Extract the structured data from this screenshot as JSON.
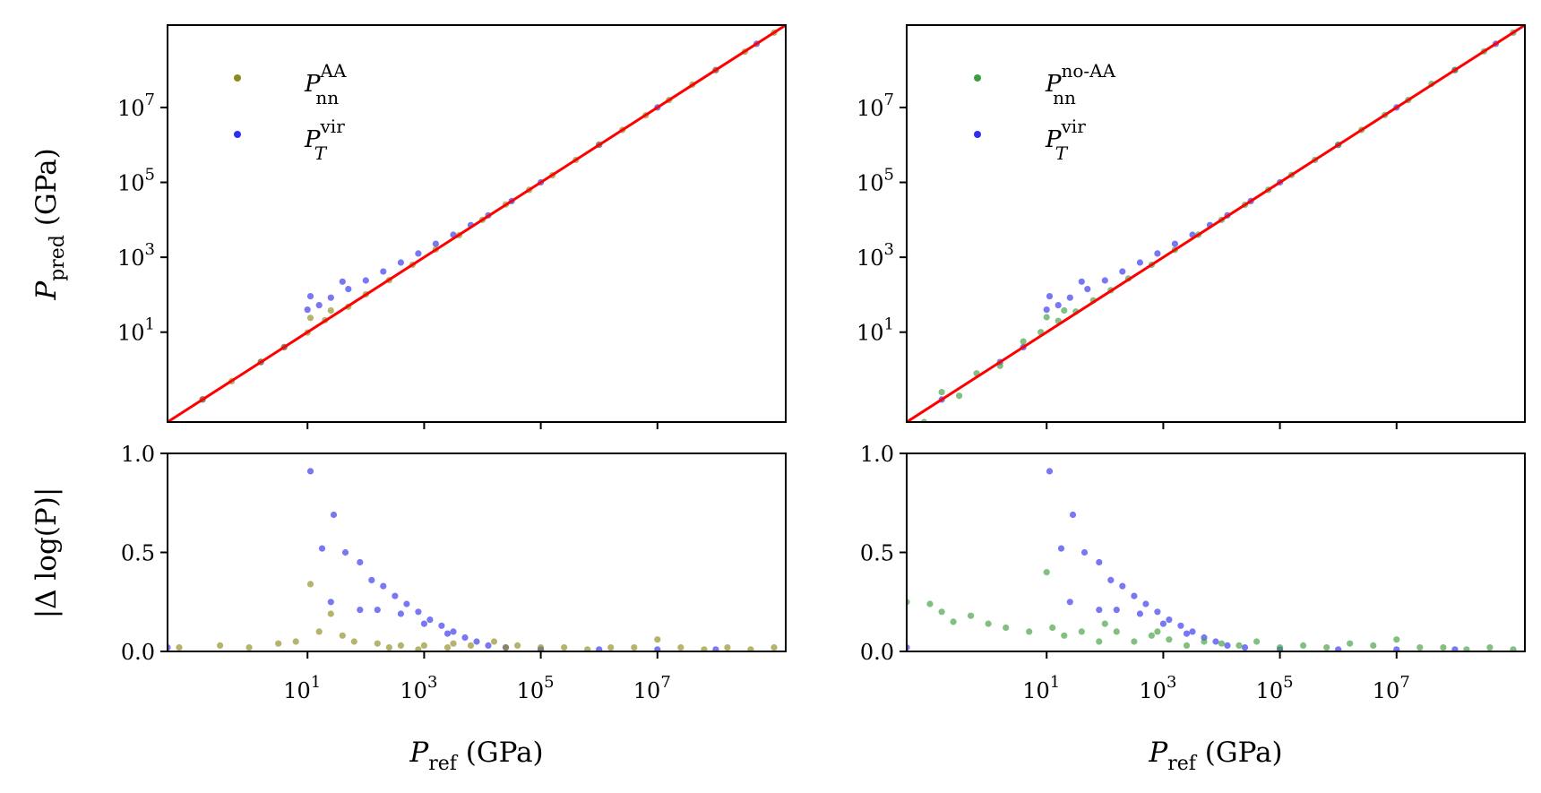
{
  "colors": {
    "nn_aa": "#8f8a1e",
    "nn_noaa": "#3d9e3d",
    "virial": "#2f2ff0",
    "identity": "#ff0000"
  },
  "labels": {
    "ylabel_top_main": "P",
    "ylabel_top_sub": "pred",
    "ylabel_top_unit": " (GPa)",
    "ylabel_bottom": "|Δ log(P)|",
    "xlabel_main": "P",
    "xlabel_sub": "ref",
    "xlabel_unit": " (GPa)",
    "legend_left_1_main": "P",
    "legend_left_1_sup": "AA",
    "legend_left_1_sub": "nn",
    "legend_right_1_main": "P",
    "legend_right_1_sup": "no-AA",
    "legend_right_1_sub": "nn",
    "legend_2_main": "P",
    "legend_2_sup": "vir",
    "legend_2_sub": "T"
  },
  "chart_data": [
    {
      "type": "scatter",
      "panel": "top-left",
      "title": "",
      "xlabel": "P_ref (GPa)",
      "ylabel": "P_pred (GPa)",
      "xscale": "log",
      "yscale": "log",
      "xlim_log10": [
        -1.4,
        9.2
      ],
      "ylim_log10": [
        -1.4,
        9.2
      ],
      "yticks": [
        {
          "label": "10",
          "exp": "1",
          "v": 1
        },
        {
          "label": "10",
          "exp": "3",
          "v": 3
        },
        {
          "label": "10",
          "exp": "5",
          "v": 5
        },
        {
          "label": "10",
          "exp": "7",
          "v": 7
        }
      ],
      "xticks_unlabeled": [
        1,
        3,
        5,
        7
      ],
      "identity_line": true,
      "legend": "top-left",
      "series": [
        {
          "name": "P_nn^AA",
          "color_key": "nn_aa",
          "log10_x": [
            -0.8,
            -0.3,
            0.2,
            0.6,
            1.0,
            1.3,
            1.7,
            2.0,
            2.4,
            2.8,
            3.2,
            3.6,
            4.0,
            4.4,
            4.8,
            5.2,
            5.6,
            6.0,
            6.4,
            6.8,
            7.2,
            7.6,
            8.0,
            8.5,
            9.0,
            1.05,
            1.4
          ],
          "log10_y": [
            -0.79,
            -0.31,
            0.21,
            0.6,
            0.99,
            1.32,
            1.68,
            2.01,
            2.39,
            2.8,
            3.21,
            3.59,
            4.0,
            4.41,
            4.8,
            5.19,
            5.6,
            6.01,
            6.4,
            6.79,
            7.2,
            7.61,
            8.0,
            8.49,
            9.0,
            1.38,
            1.58
          ]
        },
        {
          "name": "P_T^vir",
          "color_key": "virial",
          "log10_x": [
            -0.8,
            0.2,
            0.6,
            1.0,
            1.2,
            1.4,
            1.7,
            2.0,
            2.3,
            2.6,
            2.9,
            3.2,
            3.5,
            3.8,
            4.1,
            4.5,
            5.0,
            6.0,
            7.0,
            8.0,
            8.7,
            1.05,
            1.6
          ],
          "log10_y": [
            -0.8,
            0.2,
            0.6,
            1.6,
            1.72,
            1.92,
            2.15,
            2.38,
            2.62,
            2.86,
            3.1,
            3.36,
            3.6,
            3.86,
            4.12,
            4.5,
            5.0,
            6.0,
            7.0,
            8.0,
            8.7,
            1.96,
            2.35
          ]
        }
      ]
    },
    {
      "type": "scatter",
      "panel": "top-right",
      "title": "",
      "xlabel": "P_ref (GPa)",
      "ylabel": "",
      "xscale": "log",
      "yscale": "log",
      "xlim_log10": [
        -1.4,
        9.2
      ],
      "ylim_log10": [
        -1.4,
        9.2
      ],
      "yticks": [
        {
          "label": "10",
          "exp": "1",
          "v": 1
        },
        {
          "label": "10",
          "exp": "3",
          "v": 3
        },
        {
          "label": "10",
          "exp": "5",
          "v": 5
        },
        {
          "label": "10",
          "exp": "7",
          "v": 7
        }
      ],
      "xticks_unlabeled": [
        1,
        3,
        5,
        7
      ],
      "identity_line": true,
      "legend": "top-left",
      "series": [
        {
          "name": "P_nn^no-AA",
          "color_key": "nn_noaa",
          "log10_x": [
            -1.1,
            -0.8,
            -0.5,
            -0.2,
            0.2,
            0.6,
            0.9,
            1.2,
            1.5,
            1.8,
            2.1,
            2.4,
            2.8,
            3.2,
            3.6,
            4.0,
            4.4,
            4.8,
            5.2,
            5.6,
            6.0,
            6.4,
            6.8,
            7.2,
            7.6,
            8.0,
            8.5,
            9.0,
            1.0,
            1.3
          ],
          "log10_y": [
            -1.4,
            -0.6,
            -0.7,
            -0.1,
            0.1,
            0.75,
            1.0,
            1.3,
            1.55,
            1.85,
            2.12,
            2.43,
            2.8,
            3.2,
            3.6,
            4.0,
            4.4,
            4.8,
            5.2,
            5.6,
            6.0,
            6.4,
            6.8,
            7.2,
            7.63,
            8.0,
            8.5,
            9.0,
            1.4,
            1.58
          ]
        },
        {
          "name": "P_T^vir",
          "color_key": "virial",
          "log10_x": [
            -0.8,
            0.2,
            0.6,
            1.0,
            1.2,
            1.4,
            1.7,
            2.0,
            2.3,
            2.6,
            2.9,
            3.2,
            3.5,
            3.8,
            4.1,
            4.5,
            5.0,
            6.0,
            7.0,
            8.0,
            8.7,
            1.05,
            1.6
          ],
          "log10_y": [
            -0.8,
            0.2,
            0.6,
            1.6,
            1.72,
            1.92,
            2.15,
            2.38,
            2.62,
            2.86,
            3.1,
            3.36,
            3.6,
            3.86,
            4.12,
            4.5,
            5.0,
            6.0,
            7.0,
            8.0,
            8.7,
            1.96,
            2.35
          ]
        }
      ]
    },
    {
      "type": "scatter",
      "panel": "bottom-left",
      "title": "",
      "xlabel": "P_ref (GPa)",
      "ylabel": "|Δ log(P)|",
      "xscale": "log",
      "yscale": "linear",
      "xlim_log10": [
        -1.4,
        9.2
      ],
      "ylim": [
        0.0,
        1.0
      ],
      "yticks": [
        {
          "label": "0.0",
          "v": 0
        },
        {
          "label": "0.5",
          "v": 0.5
        },
        {
          "label": "1.0",
          "v": 1
        }
      ],
      "xticks": [
        {
          "label": "10",
          "exp": "1",
          "v": 1
        },
        {
          "label": "10",
          "exp": "3",
          "v": 3
        },
        {
          "label": "10",
          "exp": "5",
          "v": 5
        },
        {
          "label": "10",
          "exp": "7",
          "v": 7
        }
      ],
      "series": [
        {
          "name": "P_nn^AA",
          "color_key": "nn_aa",
          "log10_x": [
            -1.2,
            -0.5,
            0.0,
            0.5,
            0.8,
            1.05,
            1.4,
            1.8,
            2.2,
            2.6,
            3.0,
            3.4,
            3.8,
            4.2,
            4.6,
            5.0,
            5.4,
            5.8,
            6.2,
            6.6,
            7.0,
            7.4,
            7.8,
            8.2,
            8.6,
            9.0,
            1.2,
            1.6,
            2.4,
            2.9,
            3.5,
            4.4
          ],
          "values": [
            0.02,
            0.03,
            0.02,
            0.04,
            0.05,
            0.34,
            0.19,
            0.05,
            0.04,
            0.03,
            0.03,
            0.02,
            0.03,
            0.05,
            0.03,
            0.02,
            0.02,
            0.01,
            0.02,
            0.02,
            0.06,
            0.02,
            0.01,
            0.02,
            0.01,
            0.02,
            0.1,
            0.08,
            0.02,
            0.01,
            0.04,
            0.02
          ]
        },
        {
          "name": "P_T^vir",
          "color_key": "virial",
          "log10_x": [
            -1.4,
            1.05,
            1.25,
            1.45,
            1.65,
            1.9,
            2.1,
            2.3,
            2.5,
            2.7,
            2.9,
            3.1,
            3.3,
            3.5,
            3.7,
            3.9,
            4.1,
            4.4,
            5.0,
            6.0,
            7.0,
            8.0,
            1.4,
            1.9,
            2.2,
            2.6,
            3.0,
            3.4
          ],
          "values": [
            0.02,
            0.91,
            0.52,
            0.69,
            0.5,
            0.45,
            0.36,
            0.33,
            0.28,
            0.24,
            0.2,
            0.16,
            0.13,
            0.1,
            0.07,
            0.05,
            0.03,
            0.02,
            0.01,
            0.01,
            0.01,
            0.01,
            0.25,
            0.21,
            0.21,
            0.19,
            0.14,
            0.09
          ]
        }
      ]
    },
    {
      "type": "scatter",
      "panel": "bottom-right",
      "title": "",
      "xlabel": "P_ref (GPa)",
      "ylabel": "",
      "xscale": "log",
      "yscale": "linear",
      "xlim_log10": [
        -1.4,
        9.2
      ],
      "ylim": [
        0.0,
        1.0
      ],
      "yticks": [
        {
          "label": "0.0",
          "v": 0
        },
        {
          "label": "0.5",
          "v": 0.5
        },
        {
          "label": "1.0",
          "v": 1
        }
      ],
      "xticks": [
        {
          "label": "10",
          "exp": "1",
          "v": 1
        },
        {
          "label": "10",
          "exp": "3",
          "v": 3
        },
        {
          "label": "10",
          "exp": "5",
          "v": 5
        },
        {
          "label": "10",
          "exp": "7",
          "v": 7
        }
      ],
      "series": [
        {
          "name": "P_nn^no-AA",
          "color_key": "nn_noaa",
          "log10_x": [
            -1.4,
            -1.0,
            -0.8,
            -0.6,
            -0.3,
            0.0,
            0.3,
            0.7,
            1.0,
            1.3,
            1.6,
            1.9,
            2.2,
            2.5,
            2.8,
            3.1,
            3.4,
            3.7,
            4.0,
            4.3,
            4.6,
            5.0,
            5.4,
            5.8,
            6.2,
            6.6,
            7.0,
            7.4,
            7.8,
            8.2,
            8.6,
            9.0,
            1.1,
            2.0,
            2.9
          ],
          "values": [
            0.25,
            0.24,
            0.2,
            0.15,
            0.18,
            0.14,
            0.12,
            0.1,
            0.4,
            0.08,
            0.1,
            0.05,
            0.1,
            0.05,
            0.08,
            0.06,
            0.03,
            0.05,
            0.04,
            0.03,
            0.05,
            0.02,
            0.03,
            0.02,
            0.04,
            0.03,
            0.06,
            0.02,
            0.02,
            0.01,
            0.02,
            0.01,
            0.12,
            0.14,
            0.1
          ]
        },
        {
          "name": "P_T^vir",
          "color_key": "virial",
          "log10_x": [
            -1.4,
            1.05,
            1.25,
            1.45,
            1.65,
            1.9,
            2.1,
            2.3,
            2.5,
            2.7,
            2.9,
            3.1,
            3.3,
            3.5,
            3.7,
            3.9,
            4.1,
            4.4,
            5.0,
            6.0,
            7.0,
            8.0,
            1.4,
            1.9,
            2.2,
            2.6,
            3.0,
            3.4
          ],
          "values": [
            0.02,
            0.91,
            0.52,
            0.69,
            0.5,
            0.45,
            0.36,
            0.33,
            0.28,
            0.24,
            0.2,
            0.16,
            0.13,
            0.1,
            0.07,
            0.05,
            0.03,
            0.02,
            0.01,
            0.01,
            0.01,
            0.01,
            0.25,
            0.21,
            0.21,
            0.19,
            0.14,
            0.09
          ]
        }
      ]
    }
  ]
}
